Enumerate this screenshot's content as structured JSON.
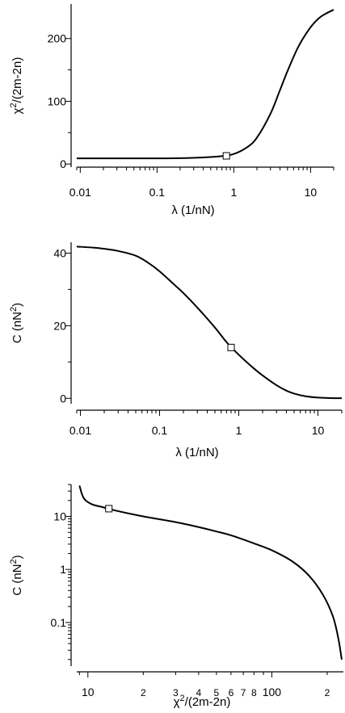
{
  "chart_data": [
    {
      "type": "line",
      "xscale": "log",
      "xlabel": "λ (1/nN)",
      "ylabel": {
        "base": "χ",
        "sup": "2",
        "rest": "/(2m-2n)"
      },
      "xlim": [
        0.009,
        20
      ],
      "ylim": [
        -5,
        255
      ],
      "xticks": [
        {
          "value": 0.01,
          "label": "0.01"
        },
        {
          "value": 0.1,
          "label": "0.1"
        },
        {
          "value": 1,
          "label": "1"
        },
        {
          "value": 10,
          "label": "10"
        }
      ],
      "yticks": [
        {
          "value": 0,
          "label": "0"
        },
        {
          "value": 100,
          "label": "100"
        },
        {
          "value": 200,
          "label": "200"
        }
      ],
      "series": [
        {
          "x": [
            0.009,
            0.02,
            0.05,
            0.1,
            0.2,
            0.4,
            0.7,
            1.0,
            1.5,
            2,
            3,
            4,
            5,
            7,
            10,
            13,
            16,
            20
          ],
          "y": [
            9,
            9,
            9,
            9,
            9.3,
            10.5,
            12.5,
            16,
            27,
            42,
            80,
            118,
            148,
            188,
            218,
            233,
            240,
            246
          ]
        }
      ],
      "marker": {
        "x": 0.8,
        "y": 13
      }
    },
    {
      "type": "line",
      "xscale": "log",
      "xlabel": "λ (1/nN)",
      "ylabel": {
        "base": "C (nN",
        "sup": "2",
        "rest": ")"
      },
      "xlim": [
        0.009,
        20
      ],
      "ylim": [
        -1.5,
        43
      ],
      "xticks": [
        {
          "value": 0.01,
          "label": "0.01"
        },
        {
          "value": 0.1,
          "label": "0.1"
        },
        {
          "value": 1,
          "label": "1"
        },
        {
          "value": 10,
          "label": "10"
        }
      ],
      "yticks": [
        {
          "value": 0,
          "label": "0"
        },
        {
          "value": 20,
          "label": "20"
        },
        {
          "value": 40,
          "label": "40"
        }
      ],
      "series": [
        {
          "x": [
            0.009,
            0.015,
            0.02,
            0.03,
            0.05,
            0.07,
            0.1,
            0.15,
            0.2,
            0.3,
            0.5,
            0.7,
            1.0,
            1.5,
            2,
            3,
            4,
            5,
            7,
            10,
            14,
            20
          ],
          "y": [
            41.8,
            41.5,
            41.2,
            40.6,
            39.3,
            37.5,
            35.0,
            31.5,
            29.0,
            25.0,
            19.5,
            15.5,
            12.0,
            8.5,
            6.3,
            3.6,
            2.1,
            1.3,
            0.55,
            0.2,
            0.07,
            0.02
          ]
        }
      ],
      "marker": {
        "x": 0.8,
        "y": 14
      }
    },
    {
      "type": "line",
      "xscale": "log",
      "yscale": "log",
      "xlabel": {
        "base": "χ",
        "sup": "2",
        "rest": "/(2m-2n)"
      },
      "ylabel": {
        "base": "C (nN",
        "sup": "2",
        "rest": ")"
      },
      "xlim": [
        8.7,
        245
      ],
      "ylim": [
        0.015,
        40
      ],
      "xticks": [
        {
          "value": 10,
          "label": "10",
          "major": true
        },
        {
          "value": 20,
          "label": "2",
          "major": false
        },
        {
          "value": 30,
          "label": "3",
          "major": false
        },
        {
          "value": 40,
          "label": "4",
          "major": false
        },
        {
          "value": 50,
          "label": "5",
          "major": false
        },
        {
          "value": 60,
          "label": "6",
          "major": false
        },
        {
          "value": 70,
          "label": "7",
          "major": false
        },
        {
          "value": 80,
          "label": "8",
          "major": false
        },
        {
          "value": 100,
          "label": "100",
          "major": true
        },
        {
          "value": 200,
          "label": "2",
          "major": false
        }
      ],
      "xminor": [
        9,
        90
      ],
      "yticks": [
        {
          "value": 0.1,
          "label": "0.1"
        },
        {
          "value": 1,
          "label": "1"
        },
        {
          "value": 10,
          "label": "10"
        }
      ],
      "series": [
        {
          "x": [
            9.0,
            9.5,
            10.5,
            12,
            14,
            20,
            30,
            40,
            50,
            60,
            80,
            100,
            130,
            160,
            190,
            215,
            230,
            240
          ],
          "y": [
            38,
            22,
            17,
            15,
            13,
            10,
            7.8,
            6.3,
            5.2,
            4.4,
            3.1,
            2.3,
            1.4,
            0.75,
            0.33,
            0.13,
            0.05,
            0.02
          ]
        }
      ],
      "marker": {
        "x": 13,
        "y": 14
      }
    }
  ]
}
